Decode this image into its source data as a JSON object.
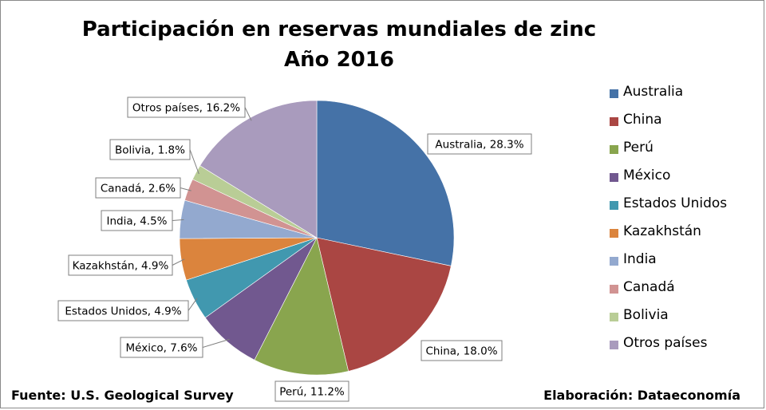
{
  "chart_data": {
    "type": "pie",
    "title": "Participación en reservas mundiales de zinc",
    "subtitle": "Año 2016",
    "categories": [
      "Australia",
      "China",
      "Perú",
      "México",
      "Estados Unidos",
      "Kazakhstán",
      "India",
      "Canadá",
      "Bolivia",
      "Otros países"
    ],
    "values": [
      28.3,
      18.0,
      11.2,
      7.6,
      4.9,
      4.9,
      4.5,
      2.6,
      1.8,
      16.2
    ],
    "data_labels": [
      "Australia, 28.3%",
      "China, 18.0%",
      "Perú, 11.2%",
      "México, 7.6%",
      "Estados Unidos, 4.9%",
      "Kazakhstán, 4.9%",
      "India, 4.5%",
      "Canadá, 2.6%",
      "Bolivia, 1.8%",
      "Otros países, 16.2%"
    ],
    "colors": [
      "#4572a7",
      "#aa4643",
      "#89a54e",
      "#71588f",
      "#4198af",
      "#db843d",
      "#93a9cf",
      "#d19392",
      "#b9cd96",
      "#a99bbd"
    ],
    "legend_position": "right"
  },
  "footer": {
    "source": "Fuente: U.S. Geological Survey",
    "credit": "Elaboración: Dataeconomía"
  }
}
